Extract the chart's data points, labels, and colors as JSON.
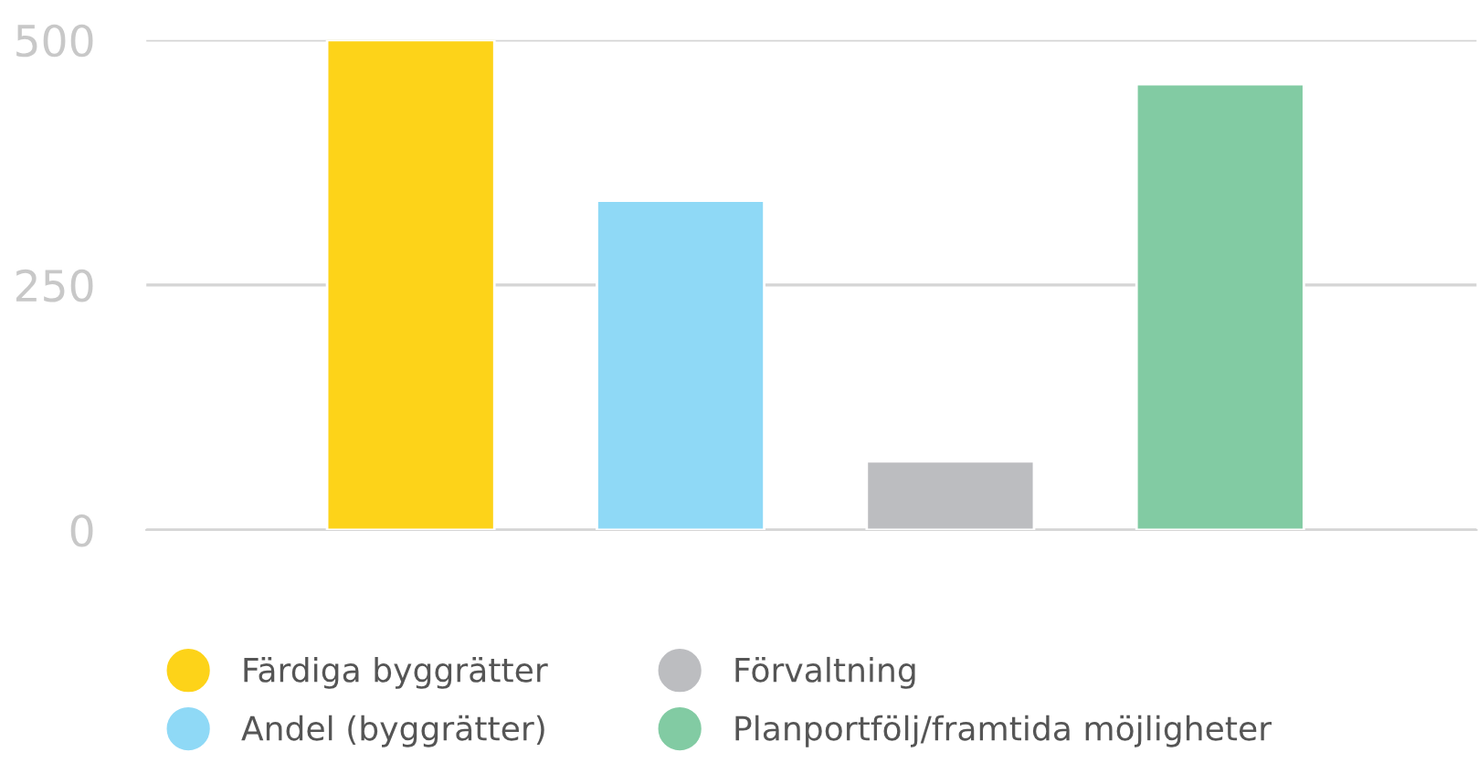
{
  "chart_data": {
    "type": "bar",
    "categories": [
      null,
      null,
      null,
      null
    ],
    "series": [
      {
        "name": "Färdiga byggrätter",
        "color": "#fdd319",
        "values": [
          500,
          null,
          null,
          null
        ]
      },
      {
        "name": "Andel (byggrätter)",
        "color": "#8fd9f6",
        "values": [
          null,
          336,
          null,
          null
        ]
      },
      {
        "name": "Förvaltning",
        "color": "#bcbdc0",
        "values": [
          null,
          null,
          70,
          null
        ]
      },
      {
        "name": "Planportfölj/framtida möjligheter",
        "color": "#82cba3",
        "values": [
          null,
          null,
          null,
          455
        ]
      }
    ],
    "ylim": [
      0,
      500
    ],
    "yticks": [
      0,
      250,
      500
    ],
    "grid": "y",
    "legend": "bottom"
  }
}
